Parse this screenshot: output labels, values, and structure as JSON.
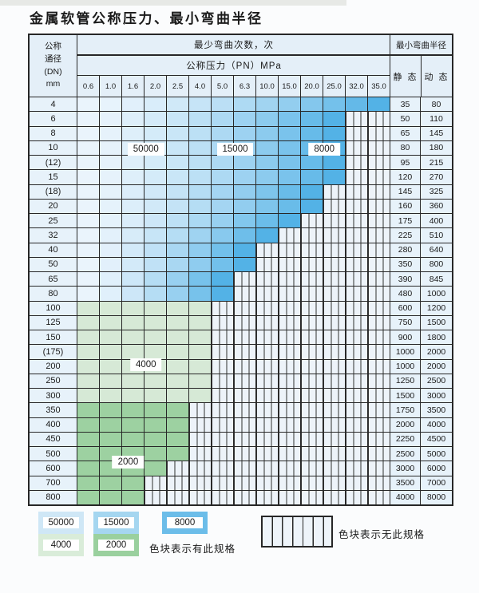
{
  "title": "金属软管公称压力、最小弯曲半径",
  "table": {
    "corner_header": {
      "line1": "公称",
      "line2": "通径",
      "line3": "(DN)",
      "line4": "mm"
    },
    "bend_cycles_header": "最少弯曲次数，次",
    "pressure_header": "公称压力（PN）MPa",
    "pressure_columns": [
      "0.6",
      "1.0",
      "1.6",
      "2.0",
      "2.5",
      "4.0",
      "5.0",
      "6.3",
      "10.0",
      "15.0",
      "20.0",
      "25.0",
      "32.0",
      "35.0"
    ],
    "radius_header": "最小弯曲半径",
    "static_header": "静 态",
    "dynamic_header": "动 态",
    "rows": [
      {
        "dn": "4",
        "spec_up_to": "35.0",
        "palette": "blue",
        "static": "35",
        "dynamic": "80"
      },
      {
        "dn": "6",
        "spec_up_to": "25.0",
        "palette": "blue",
        "static": "50",
        "dynamic": "110"
      },
      {
        "dn": "8",
        "spec_up_to": "25.0",
        "palette": "blue",
        "static": "65",
        "dynamic": "145"
      },
      {
        "dn": "10",
        "spec_up_to": "25.0",
        "palette": "blue",
        "static": "80",
        "dynamic": "180"
      },
      {
        "dn": "(12)",
        "spec_up_to": "25.0",
        "palette": "blue",
        "static": "95",
        "dynamic": "215"
      },
      {
        "dn": "15",
        "spec_up_to": "25.0",
        "palette": "blue",
        "static": "120",
        "dynamic": "270"
      },
      {
        "dn": "(18)",
        "spec_up_to": "20.0",
        "palette": "blue",
        "static": "145",
        "dynamic": "325"
      },
      {
        "dn": "20",
        "spec_up_to": "20.0",
        "palette": "blue",
        "static": "160",
        "dynamic": "360"
      },
      {
        "dn": "25",
        "spec_up_to": "15.0",
        "palette": "blue",
        "static": "175",
        "dynamic": "400"
      },
      {
        "dn": "32",
        "spec_up_to": "10.0",
        "palette": "blue",
        "static": "225",
        "dynamic": "510"
      },
      {
        "dn": "40",
        "spec_up_to": "6.3",
        "palette": "blue",
        "static": "280",
        "dynamic": "640"
      },
      {
        "dn": "50",
        "spec_up_to": "6.3",
        "palette": "blue",
        "static": "350",
        "dynamic": "800"
      },
      {
        "dn": "65",
        "spec_up_to": "5.0",
        "palette": "blue",
        "static": "390",
        "dynamic": "845"
      },
      {
        "dn": "80",
        "spec_up_to": "5.0",
        "palette": "blue",
        "static": "480",
        "dynamic": "1000"
      },
      {
        "dn": "100",
        "spec_up_to": "4.0",
        "palette": "green_light",
        "static": "600",
        "dynamic": "1200"
      },
      {
        "dn": "125",
        "spec_up_to": "4.0",
        "palette": "green_light",
        "static": "750",
        "dynamic": "1500"
      },
      {
        "dn": "150",
        "spec_up_to": "4.0",
        "palette": "green_light",
        "static": "900",
        "dynamic": "1800"
      },
      {
        "dn": "(175)",
        "spec_up_to": "4.0",
        "palette": "green_light",
        "static": "1000",
        "dynamic": "2000"
      },
      {
        "dn": "200",
        "spec_up_to": "4.0",
        "palette": "green_light",
        "static": "1000",
        "dynamic": "2000"
      },
      {
        "dn": "250",
        "spec_up_to": "4.0",
        "palette": "green_light",
        "static": "1250",
        "dynamic": "2500"
      },
      {
        "dn": "300",
        "spec_up_to": "4.0",
        "palette": "green_light",
        "static": "1500",
        "dynamic": "3000"
      },
      {
        "dn": "350",
        "spec_up_to": "2.5",
        "palette": "green_dark",
        "static": "1750",
        "dynamic": "3500"
      },
      {
        "dn": "400",
        "spec_up_to": "2.5",
        "palette": "green_dark",
        "static": "2000",
        "dynamic": "4000"
      },
      {
        "dn": "450",
        "spec_up_to": "2.5",
        "palette": "green_dark",
        "static": "2250",
        "dynamic": "4500"
      },
      {
        "dn": "500",
        "spec_up_to": "2.5",
        "palette": "green_dark",
        "static": "2500",
        "dynamic": "5000"
      },
      {
        "dn": "600",
        "spec_up_to": "2.0",
        "palette": "green_dark",
        "static": "3000",
        "dynamic": "6000"
      },
      {
        "dn": "700",
        "spec_up_to": "1.6",
        "palette": "green_dark",
        "static": "3500",
        "dynamic": "7000"
      },
      {
        "dn": "800",
        "spec_up_to": "1.6",
        "palette": "green_dark",
        "static": "4000",
        "dynamic": "8000"
      }
    ]
  },
  "region_labels": [
    {
      "text": "50000",
      "col": 3.0,
      "row": 3.5
    },
    {
      "text": "15000",
      "col": 7.0,
      "row": 3.5
    },
    {
      "text": "8000",
      "col": 11.0,
      "row": 3.5
    },
    {
      "text": "4000",
      "col": 3.0,
      "row": 18.3
    },
    {
      "text": "2000",
      "col": 2.2,
      "row": 25.0
    }
  ],
  "legend": {
    "series": [
      {
        "label": "50000",
        "color": "#cfe7f6"
      },
      {
        "label": "15000",
        "color": "#a5d6f0"
      },
      {
        "label": "8000",
        "color": "#6cbde9"
      },
      {
        "label": "4000",
        "color": "#d9ecd9"
      },
      {
        "label": "2000",
        "color": "#9ad09e"
      }
    ],
    "has_spec_text": "色块表示有此规格",
    "no_spec_text": "色块表示无此规格"
  },
  "colors": {
    "blue_light": "#eaf4fc",
    "blue_dark": "#53b2e6",
    "green_light": "#d6e9d6",
    "green_dark": "#9dd1a1",
    "header_bg": "#e4eff8",
    "hatch_bg": "#edf3f9",
    "border": "#272727"
  }
}
